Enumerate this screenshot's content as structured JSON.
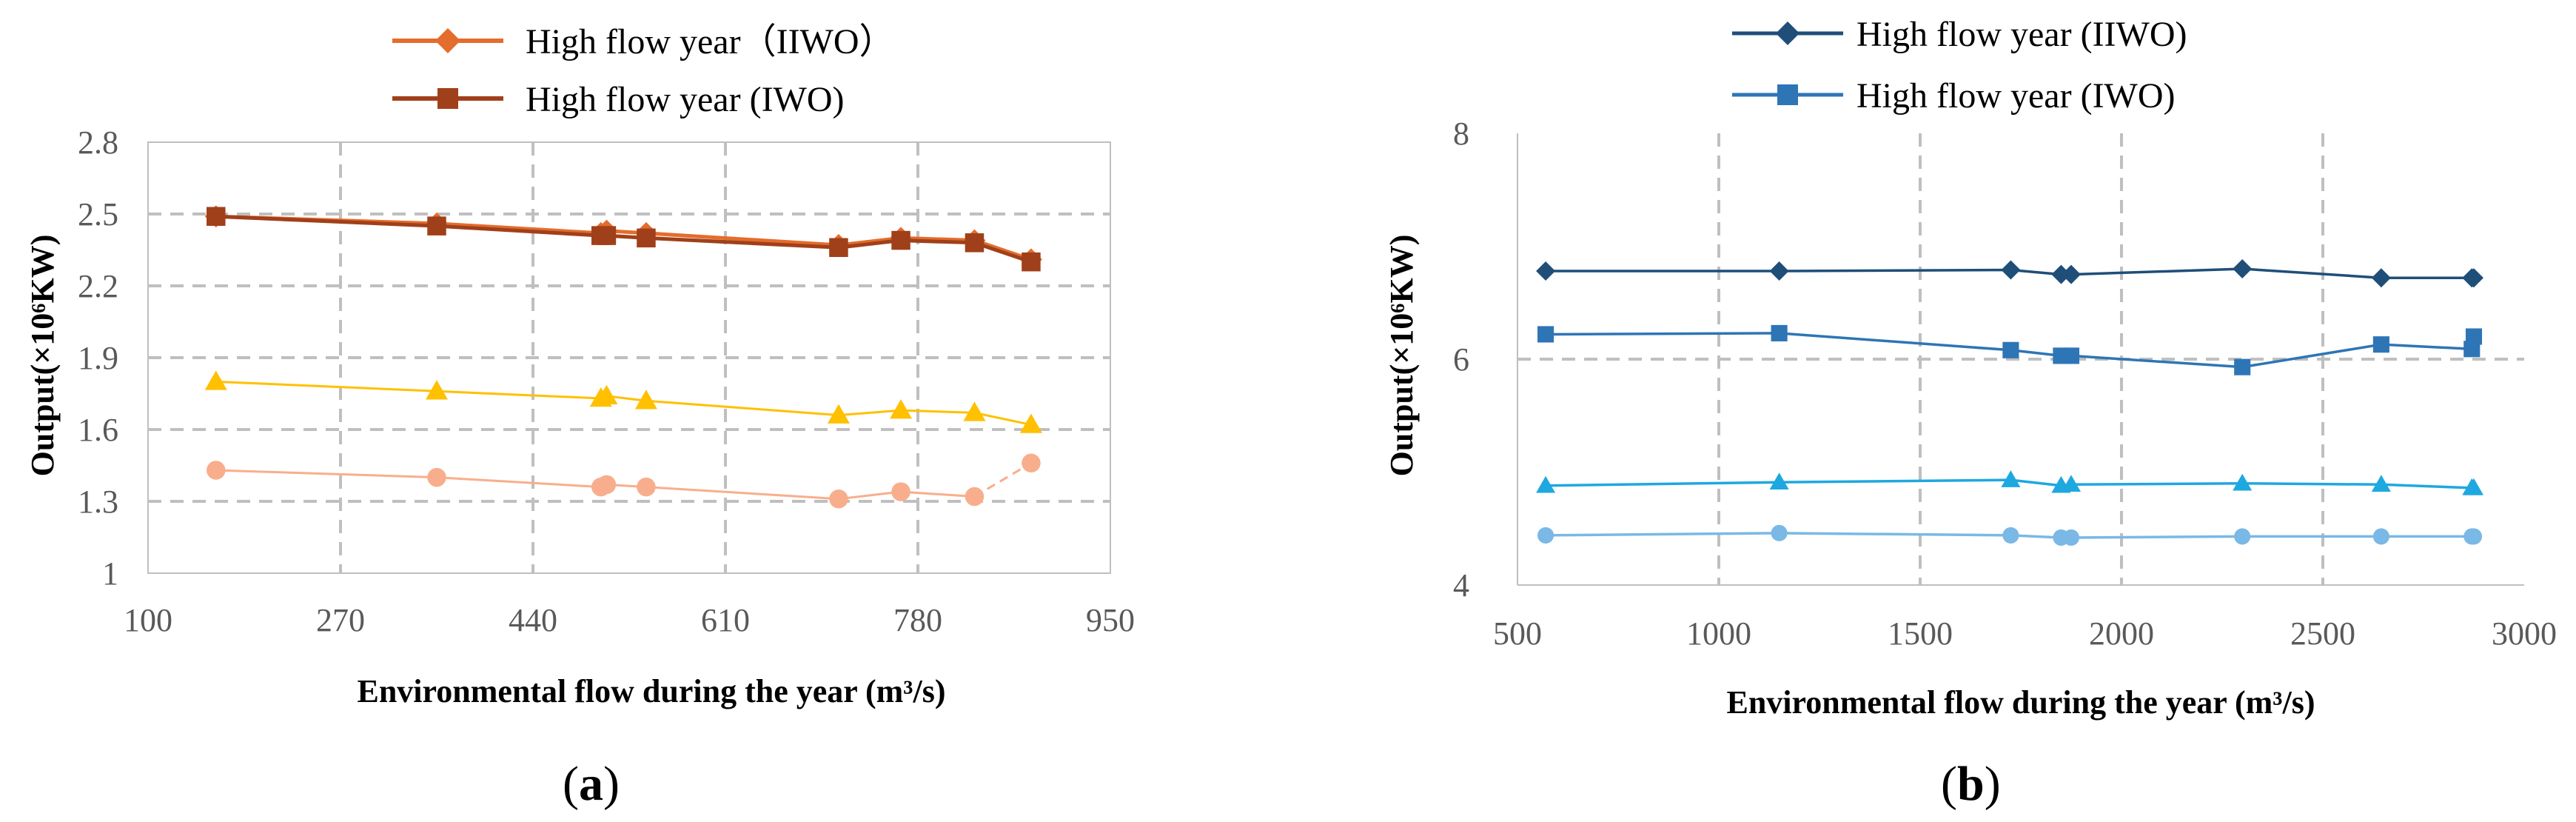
{
  "chart_data": [
    {
      "type": "line",
      "panel_label_prefix": "(",
      "panel_label_letter": "a",
      "panel_label_suffix": ")",
      "xlabel": "Environmental flow during the year (m³/s)",
      "ylabel": "Output(×10⁶KW)",
      "xlim": [
        100,
        950
      ],
      "ylim": [
        1,
        2.8
      ],
      "xticks": [
        "100",
        "270",
        "440",
        "610",
        "780",
        "950"
      ],
      "yticks": [
        "1",
        "1.3",
        "1.6",
        "1.9",
        "2.2",
        "2.5",
        "2.8"
      ],
      "grid": "dashed",
      "legend_entries": [
        "High flow year（IIWO）",
        "High flow year (IWO)"
      ],
      "series": [
        {
          "name": "High flow year（IIWO）",
          "color": "#E46C2C",
          "marker": "diamond",
          "x": [
            160,
            355,
            500,
            505,
            540,
            710,
            765,
            830,
            880
          ],
          "y": [
            2.49,
            2.46,
            2.42,
            2.43,
            2.42,
            2.37,
            2.4,
            2.39,
            2.31
          ]
        },
        {
          "name": "High flow year (IWO)",
          "color": "#A0401A",
          "marker": "square",
          "x": [
            160,
            355,
            500,
            505,
            540,
            710,
            765,
            830,
            880
          ],
          "y": [
            2.49,
            2.45,
            2.41,
            2.41,
            2.4,
            2.36,
            2.39,
            2.38,
            2.3
          ]
        },
        {
          "name": "",
          "color": "#FFC000",
          "marker": "triangle",
          "x": [
            160,
            355,
            500,
            505,
            540,
            710,
            765,
            830,
            880
          ],
          "y": [
            1.8,
            1.76,
            1.73,
            1.74,
            1.72,
            1.66,
            1.68,
            1.67,
            1.62
          ]
        },
        {
          "name": "",
          "color": "#F8AE8C",
          "marker": "circle",
          "x": [
            160,
            355,
            500,
            505,
            540,
            710,
            765,
            830,
            880
          ],
          "y": [
            1.43,
            1.4,
            1.36,
            1.37,
            1.36,
            1.31,
            1.34,
            1.32,
            1.46
          ]
        }
      ]
    },
    {
      "type": "line",
      "panel_label_prefix": "(",
      "panel_label_letter": "b",
      "panel_label_suffix": ")",
      "xlabel": "Environmental flow during the year (m³/s)",
      "ylabel": "Output(×10⁶KW)",
      "xlim": [
        500,
        3000
      ],
      "ylim": [
        4,
        8
      ],
      "xticks": [
        "500",
        "1000",
        "1500",
        "2000",
        "2500",
        "3000"
      ],
      "yticks": [
        "4",
        "6",
        "8"
      ],
      "grid": "dashed",
      "legend_entries": [
        "High flow year (IIWO)",
        "High flow year (IWO)"
      ],
      "series": [
        {
          "name": "High flow year (IIWO)",
          "color": "#1F4E79",
          "marker": "diamond",
          "x": [
            570,
            1150,
            1725,
            1850,
            1875,
            2300,
            2645,
            2870,
            2875
          ],
          "y": [
            6.78,
            6.78,
            6.79,
            6.75,
            6.75,
            6.8,
            6.72,
            6.72,
            6.72
          ]
        },
        {
          "name": "High flow year (IWO)",
          "color": "#2E75B6",
          "marker": "square",
          "x": [
            570,
            1150,
            1725,
            1850,
            1875,
            2300,
            2645,
            2870,
            2875
          ],
          "y": [
            6.22,
            6.23,
            6.08,
            6.03,
            6.03,
            5.93,
            6.13,
            6.09,
            6.2
          ]
        },
        {
          "name": "",
          "color": "#1EA8E0",
          "marker": "triangle",
          "x": [
            570,
            1150,
            1725,
            1850,
            1875,
            2300,
            2645,
            2870,
            2875
          ],
          "y": [
            4.88,
            4.91,
            4.93,
            4.88,
            4.89,
            4.9,
            4.89,
            4.86,
            4.86
          ]
        },
        {
          "name": "",
          "color": "#7AB8E6",
          "marker": "circle",
          "x": [
            570,
            1150,
            1725,
            1850,
            1875,
            2300,
            2645,
            2870,
            2875
          ],
          "y": [
            4.44,
            4.46,
            4.44,
            4.42,
            4.42,
            4.43,
            4.43,
            4.43,
            4.43
          ]
        }
      ]
    }
  ]
}
